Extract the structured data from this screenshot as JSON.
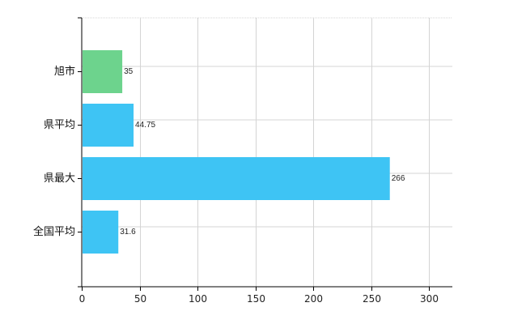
{
  "chart_data": {
    "type": "bar",
    "orientation": "horizontal",
    "categories": [
      "旭市",
      "県平均",
      "県最大",
      "全国平均"
    ],
    "values": [
      35,
      44.75,
      266,
      31.6
    ],
    "value_labels": [
      "35",
      "44.75",
      "266",
      "31.6"
    ],
    "bar_colors": [
      "#6dd38d",
      "#3ec4f4",
      "#3ec4f4",
      "#3ec4f4"
    ],
    "xlim": [
      0,
      320
    ],
    "xticks": [
      0,
      50,
      100,
      150,
      200,
      250,
      300
    ],
    "xtick_labels": [
      "0",
      "50",
      "100",
      "150",
      "200",
      "250",
      "300"
    ],
    "title": "",
    "xlabel": "",
    "ylabel": "",
    "grid": "on",
    "legend": "none"
  }
}
